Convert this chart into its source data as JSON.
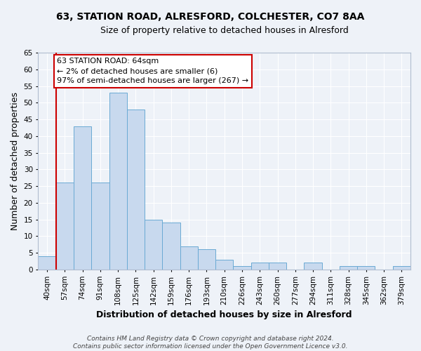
{
  "title1": "63, STATION ROAD, ALRESFORD, COLCHESTER, CO7 8AA",
  "title2": "Size of property relative to detached houses in Alresford",
  "xlabel": "Distribution of detached houses by size in Alresford",
  "ylabel": "Number of detached properties",
  "categories": [
    "40sqm",
    "57sqm",
    "74sqm",
    "91sqm",
    "108sqm",
    "125sqm",
    "142sqm",
    "159sqm",
    "176sqm",
    "193sqm",
    "210sqm",
    "226sqm",
    "243sqm",
    "260sqm",
    "277sqm",
    "294sqm",
    "311sqm",
    "328sqm",
    "345sqm",
    "362sqm",
    "379sqm"
  ],
  "values": [
    4,
    26,
    43,
    26,
    53,
    48,
    15,
    14,
    7,
    6,
    3,
    1,
    2,
    2,
    0,
    2,
    0,
    1,
    1,
    0,
    1
  ],
  "bar_color": "#c8d9ee",
  "bar_edge_color": "#6aaad4",
  "bar_width": 1.0,
  "ylim": [
    0,
    65
  ],
  "yticks": [
    0,
    5,
    10,
    15,
    20,
    25,
    30,
    35,
    40,
    45,
    50,
    55,
    60,
    65
  ],
  "annotation_text": "63 STATION ROAD: 64sqm\n← 2% of detached houses are smaller (6)\n97% of semi-detached houses are larger (267) →",
  "annotation_box_color": "#ffffff",
  "annotation_box_edge": "#cc0000",
  "footer": "Contains HM Land Registry data © Crown copyright and database right 2024.\nContains public sector information licensed under the Open Government Licence v3.0.",
  "bg_color": "#eef2f8",
  "plot_bg_color": "#eef2f8",
  "grid_color": "#ffffff",
  "red_line_color": "#cc0000",
  "title_fontsize": 10,
  "subtitle_fontsize": 9,
  "axis_label_fontsize": 9,
  "tick_fontsize": 7.5,
  "footer_fontsize": 6.5,
  "property_line_x": 0.5
}
